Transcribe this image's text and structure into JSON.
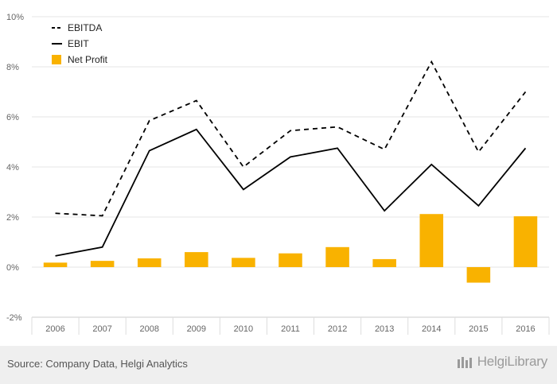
{
  "chart_data": {
    "type": "bar",
    "categories": [
      "2006",
      "2007",
      "2008",
      "2009",
      "2010",
      "2011",
      "2012",
      "2013",
      "2014",
      "2015",
      "2016"
    ],
    "series": [
      {
        "name": "EBITDA",
        "kind": "line",
        "style": "dashed",
        "color": "#000000",
        "values": [
          2.15,
          2.05,
          5.85,
          6.65,
          4.0,
          5.45,
          5.6,
          4.7,
          8.2,
          4.6,
          7.0
        ]
      },
      {
        "name": "EBIT",
        "kind": "line",
        "style": "solid",
        "color": "#000000",
        "values": [
          0.45,
          0.8,
          4.65,
          5.5,
          3.1,
          4.4,
          4.75,
          2.25,
          4.1,
          2.45,
          4.75
        ]
      },
      {
        "name": "Net Profit",
        "kind": "bar",
        "color": "#f9b200",
        "values": [
          0.18,
          0.25,
          0.35,
          0.6,
          0.37,
          0.55,
          0.8,
          0.32,
          2.12,
          -0.62,
          2.03
        ]
      }
    ],
    "y_ticks": [
      "-2%",
      "0%",
      "2%",
      "4%",
      "6%",
      "8%",
      "10%"
    ],
    "y_tick_values": [
      -2,
      0,
      2,
      4,
      6,
      8,
      10
    ],
    "ylim": [
      -2,
      10
    ],
    "grid": true,
    "legend_position": "top-left",
    "title": "",
    "xlabel": "",
    "ylabel": ""
  },
  "footer": {
    "source": "Source: Company Data, Helgi Analytics",
    "brand": "HelgiLibrary"
  }
}
